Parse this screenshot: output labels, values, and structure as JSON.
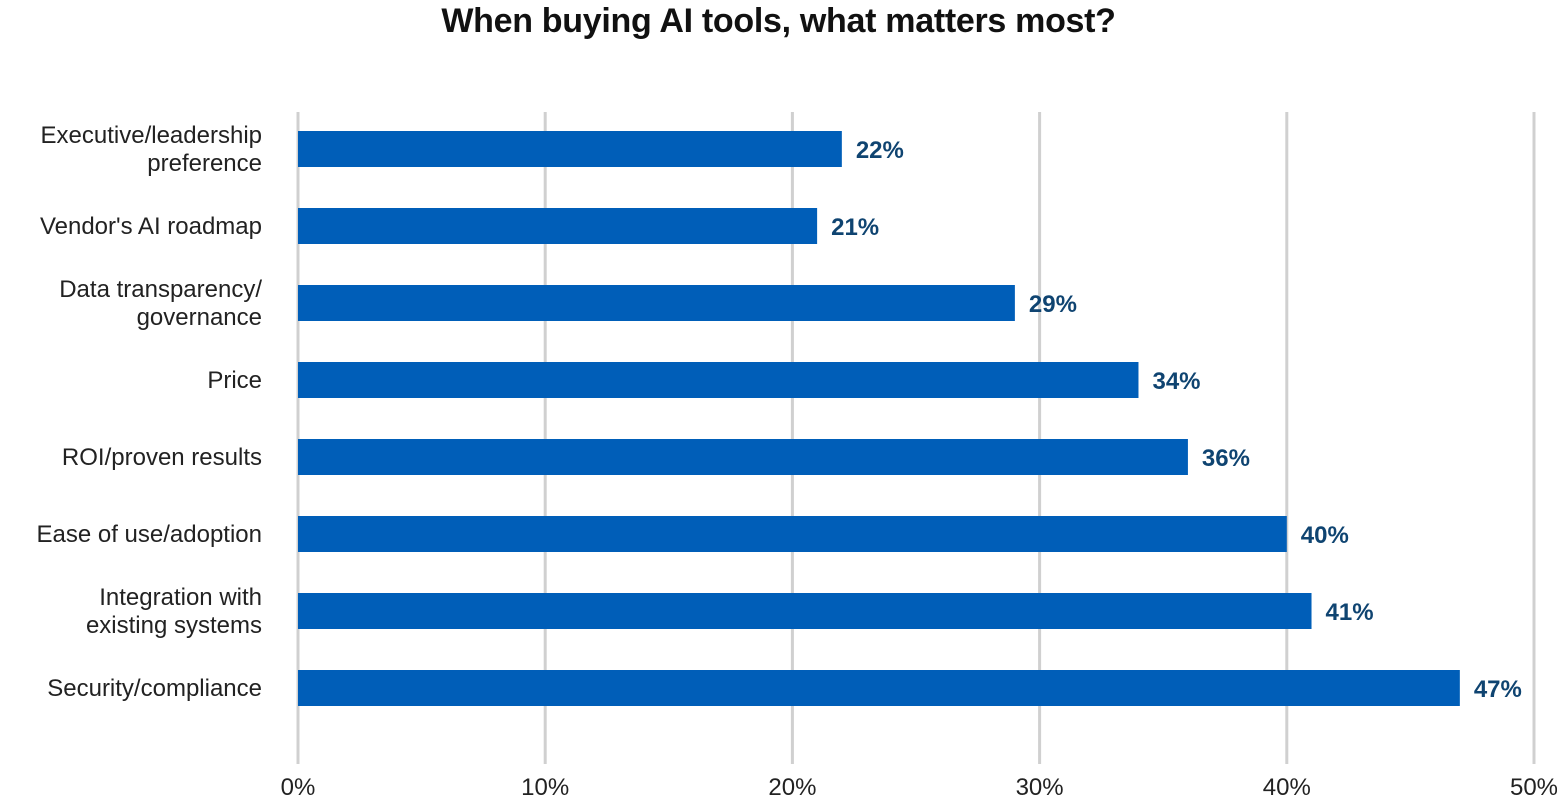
{
  "chart_data": {
    "type": "bar",
    "orientation": "horizontal",
    "title": "When buying AI tools, what matters most?",
    "categories": [
      "Executive/leadership preference",
      "Vendor's AI roadmap",
      "Data transparency/ governance",
      "Price",
      "ROI/proven results",
      "Ease of use/adoption",
      "Integration with existing systems",
      "Security/compliance"
    ],
    "category_lines": [
      [
        "Executive/leadership",
        "preference"
      ],
      [
        "Vendor's AI roadmap"
      ],
      [
        "Data transparency/",
        "governance"
      ],
      [
        "Price"
      ],
      [
        "ROI/proven results"
      ],
      [
        "Ease of use/adoption"
      ],
      [
        "Integration with",
        "existing systems"
      ],
      [
        "Security/compliance"
      ]
    ],
    "values": [
      22,
      21,
      29,
      34,
      36,
      40,
      41,
      47
    ],
    "data_labels": [
      "22%",
      "21%",
      "29%",
      "34%",
      "36%",
      "40%",
      "41%",
      "47%"
    ],
    "xlim": [
      0,
      50
    ],
    "xticks": [
      0,
      10,
      20,
      30,
      40,
      50
    ],
    "xtick_labels": [
      "0%",
      "10%",
      "20%",
      "30%",
      "40%",
      "50%"
    ],
    "xlabel": "",
    "ylabel": "",
    "grid": "vertical",
    "legend": "none",
    "bar_color": "#005eb8",
    "label_color": "#0f4471",
    "grid_color": "#d0d0d0"
  }
}
